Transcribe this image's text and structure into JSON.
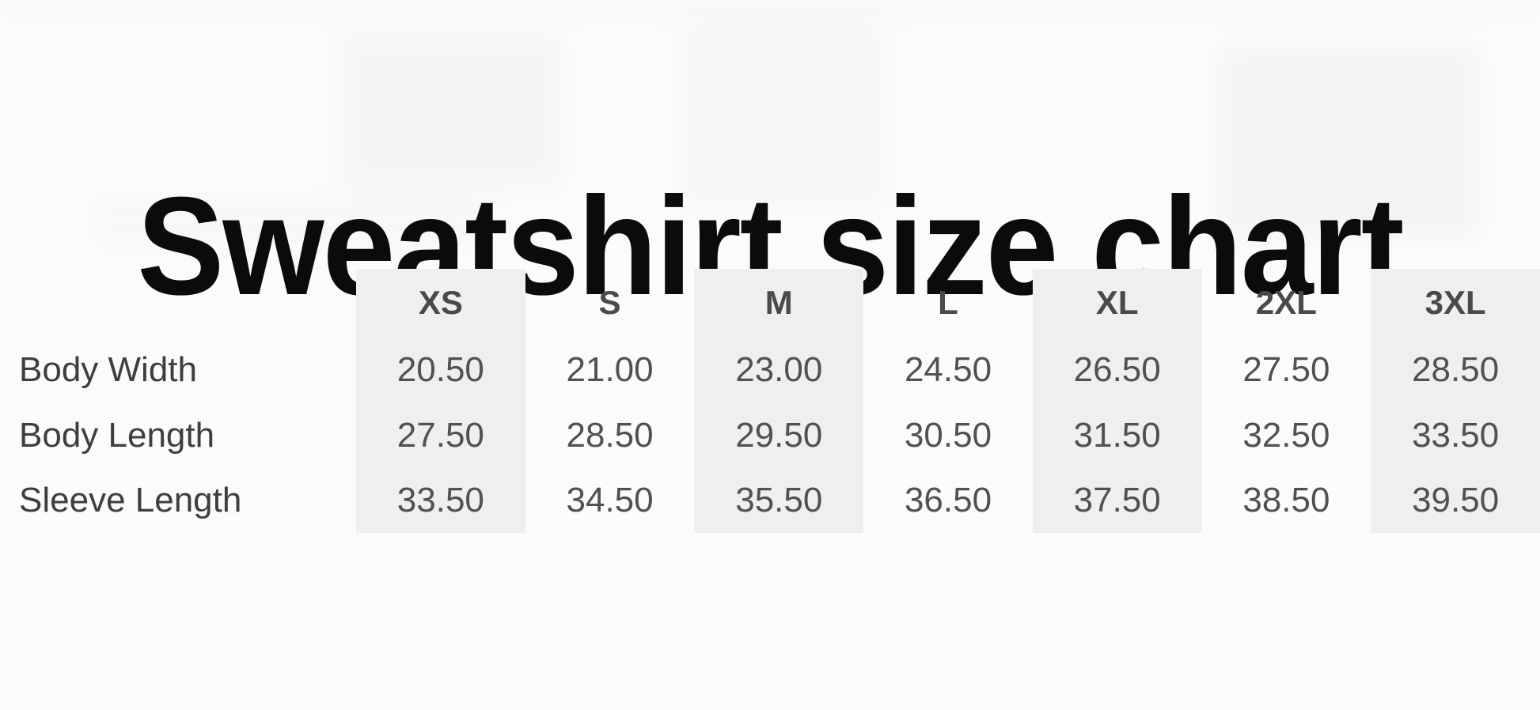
{
  "page": {
    "title": "Sweatshirt size chart"
  },
  "chart_data": {
    "type": "table",
    "title": "Sweatshirt size chart",
    "columns": [
      "XS",
      "S",
      "M",
      "L",
      "XL",
      "2XL",
      "3XL"
    ],
    "rows": [
      {
        "label": "Body Width",
        "values": [
          "20.50",
          "21.00",
          "23.00",
          "24.50",
          "26.50",
          "27.50",
          "28.50"
        ]
      },
      {
        "label": "Body Length",
        "values": [
          "27.50",
          "28.50",
          "29.50",
          "30.50",
          "31.50",
          "32.50",
          "33.50"
        ]
      },
      {
        "label": "Sleeve Length",
        "values": [
          "33.50",
          "34.50",
          "35.50",
          "36.50",
          "37.50",
          "38.50",
          "39.50"
        ]
      }
    ],
    "layout": {
      "shaded_columns": [
        "XS",
        "M",
        "XL",
        "3XL"
      ],
      "shade_color": "#f0eff0",
      "background_color": "#fbfbfc",
      "title_color": "#0b0b0b",
      "header_text_color": "#4a4a4a",
      "value_text_color": "#515151",
      "legend": "none",
      "grid": "off"
    }
  }
}
